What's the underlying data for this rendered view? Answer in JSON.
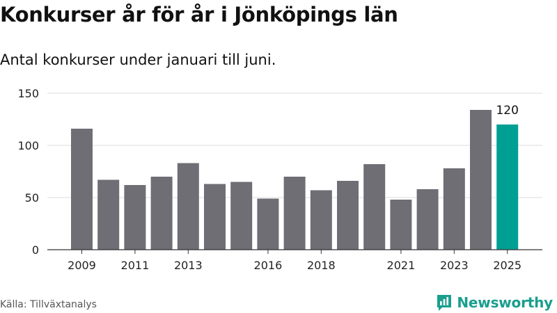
{
  "header": {
    "title": "Konkurser år för år i Jönköpings län",
    "subtitle": "Antal konkurser under januari till juni."
  },
  "footer": {
    "source": "Källa: Tillväxtanalys",
    "brand": "Newsworthy"
  },
  "colors": {
    "bar": "#6f6e74",
    "highlight": "#009f94",
    "grid": "#dddddd",
    "axis": "#333333",
    "brand": "#1a9e8e"
  },
  "chart_data": {
    "type": "bar",
    "title": "Konkurser år för år i Jönköpings län",
    "subtitle": "Antal konkurser under januari till juni.",
    "xlabel": "",
    "ylabel": "",
    "categories": [
      "2009",
      "2010",
      "2011",
      "2012",
      "2013",
      "2014",
      "2015",
      "2016",
      "2017",
      "2018",
      "2019",
      "2020",
      "2021",
      "2022",
      "2023",
      "2024",
      "2025"
    ],
    "values": [
      116,
      67,
      62,
      70,
      83,
      63,
      65,
      49,
      70,
      57,
      66,
      82,
      48,
      58,
      78,
      134,
      120
    ],
    "x_tick_labels": [
      "2009",
      "2011",
      "2013",
      "2016",
      "2018",
      "2021",
      "2023",
      "2025"
    ],
    "y_ticks": [
      0,
      50,
      100,
      150
    ],
    "ylim": [
      0,
      150
    ],
    "highlight_category": "2025",
    "data_labels": [
      {
        "category": "2025",
        "text": "120"
      }
    ],
    "grid": true
  }
}
